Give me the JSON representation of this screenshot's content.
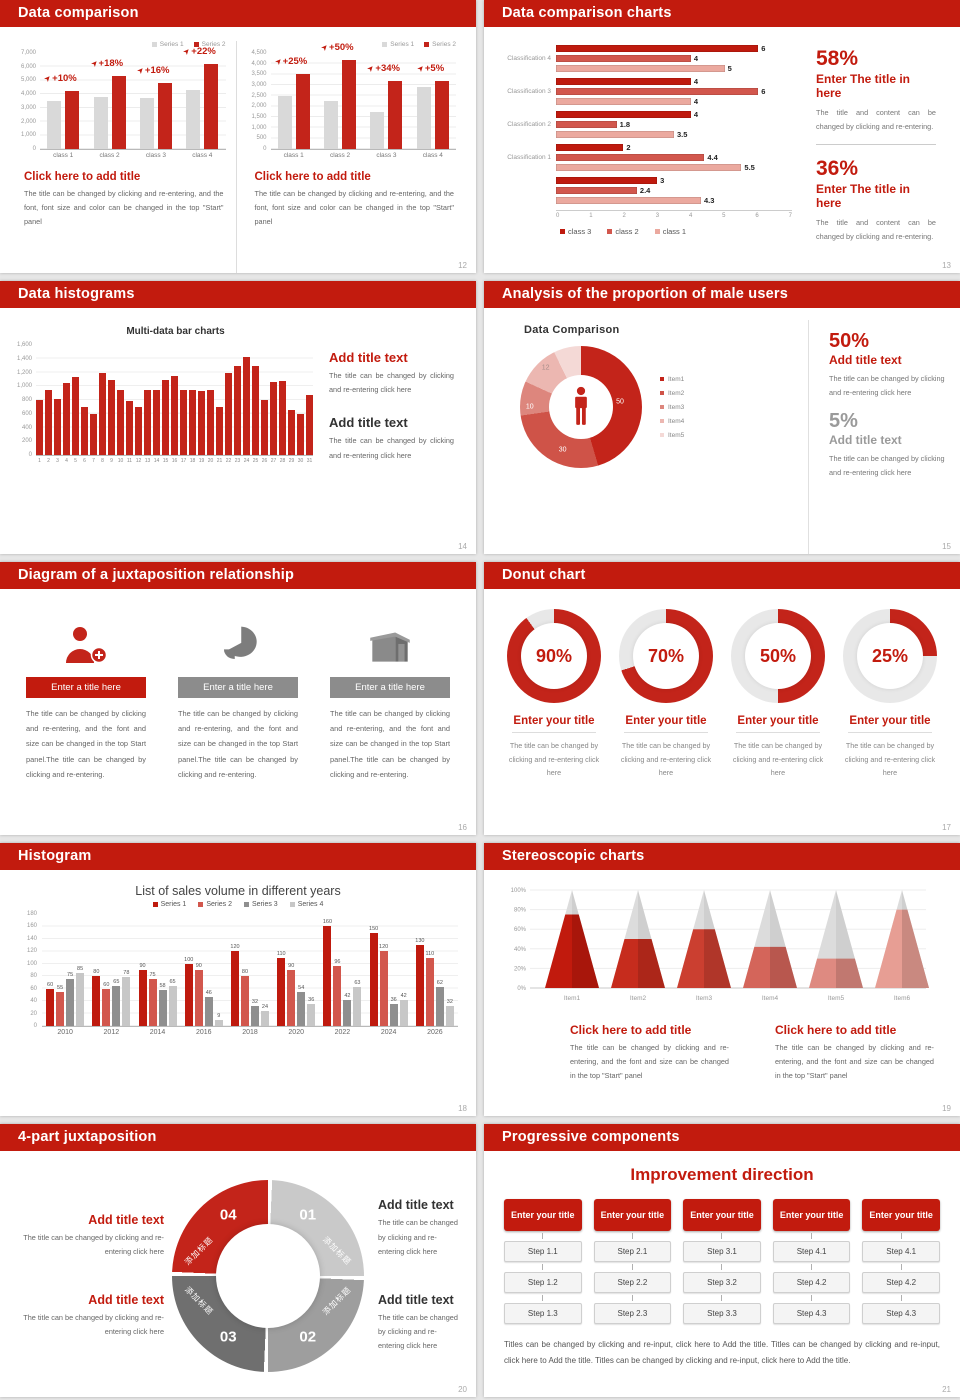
{
  "colors": {
    "accent": "#c21b0e",
    "bar_red": "#c3241a",
    "bar_gray": "#d9d9d9",
    "red_dark": "#bf1a0e",
    "red_mid": "#d2574d",
    "red_light": "#eba99f",
    "gray_dark": "#6f6f6f",
    "gray_mid": "#9e9e9e",
    "gray_light": "#c9c9c9"
  },
  "slides": [
    {
      "title": "Data comparison",
      "page": "12",
      "panels": [
        {
          "legend": [
            "Series 1",
            "Series 2"
          ],
          "chart_data": {
            "type": "bar",
            "categories": [
              "class 1",
              "class 2",
              "class 3",
              "class 4"
            ],
            "series": [
              {
                "name": "Series 1",
                "values": [
                  3500,
                  3800,
                  3700,
                  4300
                ]
              },
              {
                "name": "Series 2",
                "values": [
                  4200,
                  5300,
                  4800,
                  6200
                ]
              }
            ],
            "growth_labels": [
              "+10%",
              "+18%",
              "+16%",
              "+22%"
            ],
            "yticks": [
              "7,000",
              "6,000",
              "5,000",
              "4,000",
              "3,000",
              "2,000",
              "1,000",
              "0"
            ],
            "ymax": 7000
          },
          "block": {
            "title": "Click here to add title",
            "body": "The title can be changed by clicking and re-entering, and the font, font size and color can be changed in the top \"Start\" panel"
          }
        },
        {
          "legend": [
            "Series 1",
            "Series 2"
          ],
          "chart_data": {
            "type": "bar",
            "categories": [
              "class 1",
              "class 2",
              "class 3",
              "class 4"
            ],
            "series": [
              {
                "name": "Series 1",
                "values": [
                  2500,
                  2250,
                  1750,
                  2900
                ]
              },
              {
                "name": "Series 2",
                "values": [
                  3500,
                  4150,
                  3200,
                  3200
                ]
              }
            ],
            "growth_labels": [
              "+25%",
              "+50%",
              "+34%",
              "+5%"
            ],
            "yticks": [
              "4,500",
              "4,000",
              "3,500",
              "3,000",
              "2,500",
              "2,000",
              "1,500",
              "1,000",
              "500",
              "0"
            ],
            "ymax": 4500
          },
          "block": {
            "title": "Click here to add title",
            "body": "The title can be changed by clicking and re-entering, and the font, font size and color can be changed in the top \"Start\" panel"
          }
        }
      ]
    },
    {
      "title": "Data comparison charts",
      "page": "13",
      "chart_data": {
        "type": "bar-horizontal",
        "xticks": [
          "0",
          "1",
          "2",
          "3",
          "4",
          "5",
          "6",
          "7"
        ],
        "xmax": 7,
        "legend": [
          "class 3",
          "class 2",
          "class 1"
        ],
        "groups": [
          {
            "label": "Classification 4",
            "values": [
              6,
              4,
              5
            ]
          },
          {
            "label": "Classification 3",
            "values": [
              4,
              6,
              4
            ]
          },
          {
            "label": "Classification 2",
            "values": [
              4,
              1.8,
              3.5
            ]
          },
          {
            "label": "Classification 1",
            "values": [
              2,
              4.4,
              5.5
            ]
          },
          {
            "label": "",
            "values": [
              3,
              2.4,
              4.3
            ]
          }
        ]
      },
      "stats": [
        {
          "pct": "58%",
          "title": "Enter The title in here",
          "body": "The title and content can be changed by clicking and re-entering."
        },
        {
          "pct": "36%",
          "title": "Enter The title in here",
          "body": "The title and content can be changed by clicking and re-entering."
        }
      ]
    },
    {
      "title": "Data histograms",
      "page": "14",
      "chart_data": {
        "type": "bar",
        "title": "Multi-data bar charts",
        "ymax": 1600,
        "yticks": [
          "1,600",
          "1,400",
          "1,200",
          "1,000",
          "800",
          "600",
          "400",
          "200",
          "0"
        ],
        "xlabels": [
          "1",
          "2",
          "3",
          "4",
          "5",
          "6",
          "7",
          "8",
          "9",
          "10",
          "11",
          "12",
          "13",
          "14",
          "15",
          "16",
          "17",
          "18",
          "19",
          "20",
          "21",
          "22",
          "23",
          "24",
          "25",
          "26",
          "27",
          "28",
          "29",
          "30",
          "31"
        ],
        "values": [
          800,
          950,
          810,
          1050,
          1130,
          700,
          600,
          1200,
          1090,
          950,
          780,
          700,
          950,
          950,
          1090,
          1150,
          950,
          950,
          930,
          950,
          700,
          1200,
          1300,
          1430,
          1300,
          800,
          1060,
          1080,
          660,
          600,
          870
        ]
      },
      "blocks": [
        {
          "title": "Add title text",
          "style": "red",
          "body": "The title can be changed by clicking and re-entering click here"
        },
        {
          "title": "Add title text",
          "style": "dark",
          "body": "The title can be changed by clicking and re-entering click here"
        }
      ]
    },
    {
      "title": "Analysis of the proportion of male users",
      "page": "15",
      "chart_data": {
        "type": "pie",
        "title": "Data Comparison",
        "slices": [
          {
            "label": "50",
            "value": 50
          },
          {
            "label": "30",
            "value": 30
          },
          {
            "label": "10",
            "value": 10
          },
          {
            "label": "12",
            "value": 12
          },
          {
            "label": "",
            "value": 8
          }
        ],
        "legend": [
          "Item1",
          "Item2",
          "Item3",
          "Item4",
          "Item5"
        ]
      },
      "center_icon": "male-icon",
      "stats": [
        {
          "pct": "50%",
          "style": "red",
          "title": "Add title text",
          "body": "The title can be changed by clicking and re-entering click here"
        },
        {
          "pct": "5%",
          "style": "gray",
          "title": "Add title text",
          "body": "The title can be changed by clicking and re-entering click here"
        }
      ]
    },
    {
      "title": "Diagram of a juxtaposition relationship",
      "page": "16",
      "columns": [
        {
          "icon": "person-plus-icon",
          "style": "red",
          "title": "Enter a title here",
          "body": "The title can be changed by clicking and re-entering, and the font and size can be changed in the top Start panel.The title can be changed by clicking and re-entering."
        },
        {
          "icon": "pie-chart-icon",
          "style": "gray",
          "title": "Enter a title here",
          "body": "The title can be changed by clicking and re-entering, and the font and size can be changed in the top Start panel.The title can be changed by clicking and re-entering."
        },
        {
          "icon": "building-icon",
          "style": "gray",
          "title": "Enter a title here",
          "body": "The title can be changed by clicking and re-entering, and the font and size can be changed in the top Start panel.The title can be changed by clicking and re-entering."
        }
      ]
    },
    {
      "title": "Donut chart",
      "page": "17",
      "donuts": [
        {
          "pct": 90,
          "label": "90%",
          "title": "Enter your title",
          "body": "The title can be changed by clicking and re-entering click here"
        },
        {
          "pct": 70,
          "label": "70%",
          "title": "Enter your title",
          "body": "The title can be changed by clicking and re-entering click here"
        },
        {
          "pct": 50,
          "label": "50%",
          "title": "Enter your title",
          "body": "The title can be changed by clicking and re-entering click here"
        },
        {
          "pct": 25,
          "label": "25%",
          "title": "Enter your title",
          "body": "The title can be changed by clicking and re-entering click here"
        }
      ]
    },
    {
      "title": "Histogram",
      "page": "18",
      "chart_data": {
        "type": "bar",
        "title": "List of sales volume in different years",
        "legend": [
          "Series 1",
          "Series 2",
          "Series 3",
          "Series 4"
        ],
        "categories": [
          "2010",
          "2012",
          "2014",
          "2016",
          "2018",
          "2020",
          "2022",
          "2024",
          "2026"
        ],
        "series": [
          {
            "name": "Series 1",
            "values": [
              60,
              80,
              90,
              100,
              120,
              110,
              160,
              150,
              130
            ]
          },
          {
            "name": "Series 2",
            "values": [
              55,
              60,
              75,
              90,
              80,
              90,
              96,
              120,
              110
            ]
          },
          {
            "name": "Series 3",
            "values": [
              75,
              65,
              58,
              46,
              32,
              54,
              42,
              36,
              62
            ]
          },
          {
            "name": "Series 4",
            "values": [
              85,
              78,
              65,
              9,
              24,
              36,
              63,
              42,
              32
            ]
          }
        ],
        "yticks": [
          "180",
          "160",
          "140",
          "120",
          "100",
          "80",
          "60",
          "40",
          "20",
          "0"
        ],
        "ymax": 180
      }
    },
    {
      "title": "Stereoscopic charts",
      "page": "19",
      "chart_data": {
        "type": "cone",
        "items": [
          "Item1",
          "Item2",
          "Item3",
          "Item4",
          "Item5",
          "Item6"
        ],
        "values_pct": [
          75,
          50,
          60,
          42,
          30,
          80
        ],
        "yticks": [
          "100%",
          "80%",
          "60%",
          "40%",
          "20%",
          "0%"
        ]
      },
      "blocks": [
        {
          "title": "Click here to add title",
          "body": "The title can be changed by clicking and re-entering, and the font and size can be changed in the top \"Start\" panel"
        },
        {
          "title": "Click here to add title",
          "body": "The title can be changed by clicking and re-entering, and the font and size can be changed in the top \"Start\" panel"
        }
      ]
    },
    {
      "title": "4-part juxtaposition",
      "page": "20",
      "ring": {
        "segments": [
          {
            "num": "01",
            "label": "添加标题"
          },
          {
            "num": "02",
            "label": "添加标题"
          },
          {
            "num": "03",
            "label": "添加标题"
          },
          {
            "num": "04",
            "label": "添加标题"
          }
        ]
      },
      "blocks": [
        {
          "style": "red",
          "title": "Add title text",
          "body": "The title can be changed by clicking and re-entering click here"
        },
        {
          "style": "dark",
          "title": "Add title text",
          "body": "The title can be changed by clicking and re-entering click here"
        },
        {
          "style": "red",
          "title": "Add title text",
          "body": "The title can be changed by clicking and re-entering click here"
        },
        {
          "style": "dark",
          "title": "Add title text",
          "body": "The title can be changed by clicking and re-entering click here"
        }
      ]
    },
    {
      "title": "Progressive components",
      "page": "21",
      "heading": "Improvement direction",
      "columns": [
        {
          "title": "Enter your title",
          "steps": [
            "Step 1.1",
            "Step 1.2",
            "Step 1.3"
          ]
        },
        {
          "title": "Enter your title",
          "steps": [
            "Step 2.1",
            "Step 2.2",
            "Step 2.3"
          ]
        },
        {
          "title": "Enter your title",
          "steps": [
            "Step 3.1",
            "Step 3.2",
            "Step 3.3"
          ]
        },
        {
          "title": "Enter your title",
          "steps": [
            "Step 4.1",
            "Step 4.2",
            "Step 4.3"
          ]
        },
        {
          "title": "Enter your title",
          "steps": [
            "Step 4.1",
            "Step 4.2",
            "Step 4.3"
          ]
        }
      ],
      "footer": "Titles can be changed by clicking and re-input, click here to Add the title. Titles can be changed by clicking and re-input, click here to Add the title. Titles can be changed by clicking and re-input, click here to Add the title."
    }
  ]
}
